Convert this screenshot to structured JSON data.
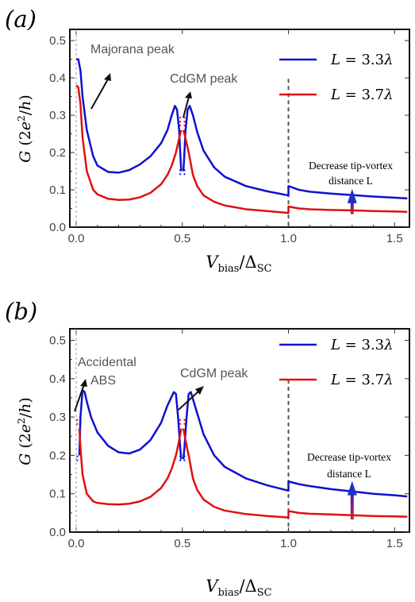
{
  "chart_data": [
    {
      "type": "line",
      "panel_label": "(a)",
      "xlabel": "V_bias/Δ_SC",
      "ylabel": "G (2e²/h)",
      "xlim": [
        -0.03,
        1.57
      ],
      "ylim": [
        0.0,
        0.53
      ],
      "xticks": [
        "0.0",
        "0.5",
        "1.0",
        "1.5"
      ],
      "yticks": [
        "0.0",
        "0.1",
        "0.2",
        "0.3",
        "0.4",
        "0.5"
      ],
      "legend_position": "top-right",
      "series": [
        {
          "name": "L = 3.3λ",
          "color": "#1010d0",
          "x": [
            0.0,
            0.01,
            0.02,
            0.03,
            0.05,
            0.08,
            0.1,
            0.15,
            0.2,
            0.25,
            0.3,
            0.35,
            0.4,
            0.43,
            0.45,
            0.465,
            0.475,
            0.485,
            0.49,
            0.495,
            null,
            0.505,
            0.51,
            0.515,
            0.525,
            0.535,
            0.55,
            0.57,
            0.6,
            0.65,
            0.7,
            0.8,
            0.9,
            1.0,
            1.0,
            1.05,
            1.1,
            1.2,
            1.3,
            1.4,
            1.5,
            1.56
          ],
          "y": [
            0.45,
            0.45,
            0.42,
            0.35,
            0.26,
            0.19,
            0.165,
            0.148,
            0.146,
            0.153,
            0.168,
            0.19,
            0.225,
            0.26,
            0.3,
            0.325,
            0.315,
            0.26,
            0.2,
            0.15,
            null,
            0.15,
            0.2,
            0.26,
            0.315,
            0.325,
            0.3,
            0.255,
            0.205,
            0.16,
            0.135,
            0.11,
            0.096,
            0.085,
            0.11,
            0.1,
            0.095,
            0.09,
            0.086,
            0.082,
            0.079,
            0.077
          ]
        },
        {
          "name": "L = 3.7λ",
          "color": "#e01010",
          "x": [
            0.0,
            0.01,
            0.02,
            0.03,
            0.05,
            0.08,
            0.1,
            0.15,
            0.2,
            0.25,
            0.3,
            0.35,
            0.4,
            0.43,
            0.45,
            0.47,
            0.48,
            0.49,
            0.495,
            null,
            0.505,
            0.51,
            0.52,
            0.53,
            0.55,
            0.57,
            0.6,
            0.65,
            0.7,
            0.8,
            0.9,
            1.0,
            1.0,
            1.05,
            1.1,
            1.2,
            1.3,
            1.4,
            1.5,
            1.56
          ],
          "y": [
            0.38,
            0.375,
            0.33,
            0.24,
            0.15,
            0.1,
            0.088,
            0.076,
            0.073,
            0.074,
            0.08,
            0.092,
            0.115,
            0.14,
            0.165,
            0.2,
            0.225,
            0.25,
            0.26,
            null,
            0.26,
            0.25,
            0.225,
            0.2,
            0.14,
            0.11,
            0.085,
            0.068,
            0.058,
            0.048,
            0.043,
            0.038,
            0.055,
            0.05,
            0.048,
            0.046,
            0.045,
            0.043,
            0.042,
            0.041
          ]
        }
      ],
      "dotted_near_half": {
        "blue": [
          0.14,
          0.16
        ],
        "red": [
          0.27,
          0.3
        ]
      },
      "dashed_vline_x": 1.0,
      "arrow_x": 1.3,
      "annotations": {
        "majorana": "Majorana peak",
        "cdgm": "CdGM peak",
        "decrease_line1": "Decrease tip-vortex",
        "decrease_line2": "distance L"
      }
    },
    {
      "type": "line",
      "panel_label": "(b)",
      "xlabel": "V_bias/Δ_SC",
      "ylabel": "G (2e²/h)",
      "xlim": [
        -0.03,
        1.57
      ],
      "ylim": [
        0.0,
        0.53
      ],
      "xticks": [
        "0.0",
        "0.5",
        "1.0",
        "1.5"
      ],
      "yticks": [
        "0.0",
        "0.1",
        "0.2",
        "0.3",
        "0.4",
        "0.5"
      ],
      "legend_position": "top-right",
      "series": [
        {
          "name": "L = 3.3λ",
          "color": "#1010d0",
          "x": [
            0.015,
            0.02,
            0.03,
            0.04,
            0.05,
            0.07,
            0.1,
            0.15,
            0.2,
            0.25,
            0.3,
            0.35,
            0.4,
            0.43,
            0.46,
            0.47,
            0.48,
            0.485,
            0.49,
            0.495,
            null,
            0.505,
            0.51,
            0.515,
            0.52,
            0.53,
            0.54,
            0.57,
            0.6,
            0.65,
            0.7,
            0.8,
            0.9,
            1.0,
            1.0,
            1.05,
            1.1,
            1.2,
            1.3,
            1.4,
            1.5,
            1.56
          ],
          "y": [
            0.2,
            0.3,
            0.37,
            0.365,
            0.34,
            0.3,
            0.26,
            0.225,
            0.208,
            0.205,
            0.215,
            0.24,
            0.285,
            0.33,
            0.365,
            0.36,
            0.3,
            0.26,
            0.22,
            0.19,
            null,
            0.19,
            0.22,
            0.26,
            0.3,
            0.36,
            0.365,
            0.31,
            0.255,
            0.2,
            0.17,
            0.14,
            0.122,
            0.108,
            0.132,
            0.125,
            0.12,
            0.112,
            0.106,
            0.1,
            0.096,
            0.093
          ]
        },
        {
          "name": "L = 3.7λ",
          "color": "#e01010",
          "x": [
            0.015,
            0.02,
            0.03,
            0.05,
            0.08,
            0.1,
            0.15,
            0.2,
            0.25,
            0.3,
            0.35,
            0.4,
            0.43,
            0.45,
            0.47,
            0.48,
            0.49,
            0.495,
            null,
            0.505,
            0.51,
            0.52,
            0.53,
            0.55,
            0.57,
            0.6,
            0.65,
            0.7,
            0.8,
            0.9,
            1.0,
            1.0,
            1.05,
            1.1,
            1.2,
            1.3,
            1.4,
            1.5,
            1.56
          ],
          "y": [
            0.27,
            0.22,
            0.15,
            0.1,
            0.08,
            0.076,
            0.073,
            0.072,
            0.074,
            0.08,
            0.092,
            0.115,
            0.14,
            0.165,
            0.2,
            0.225,
            0.255,
            0.27,
            null,
            0.27,
            0.255,
            0.225,
            0.2,
            0.14,
            0.11,
            0.085,
            0.066,
            0.056,
            0.047,
            0.042,
            0.038,
            0.055,
            0.05,
            0.048,
            0.046,
            0.044,
            0.042,
            0.041,
            0.04
          ]
        }
      ],
      "dotted_near_half": {
        "blue": [
          0.185,
          0.205
        ],
        "red": [
          0.28,
          0.3
        ]
      },
      "dotted_near_zero": {
        "blue": [
          0.185,
          0.205
        ],
        "red": [
          0.28,
          0.3
        ]
      },
      "dashed_vline_x": 1.0,
      "arrow_x": 1.3,
      "annotations": {
        "accidental_line1": "Accidental",
        "accidental_line2": "ABS",
        "cdgm": "CdGM peak",
        "decrease_line1": "Decrease tip-vortex",
        "decrease_line2": "distance L"
      }
    }
  ]
}
